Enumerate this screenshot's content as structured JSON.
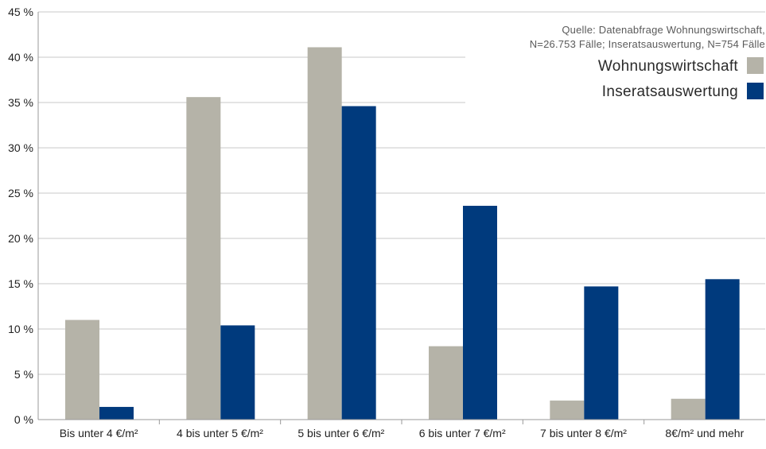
{
  "chart_data": {
    "type": "bar",
    "categories": [
      "Bis unter 4 €/m²",
      "4 bis unter 5 €/m²",
      "5 bis unter 6 €/m²",
      "6 bis unter 7 €/m²",
      "7 bis unter 8 €/m²",
      "8€/m² und mehr"
    ],
    "series": [
      {
        "name": "Wohnungswirtschaft",
        "color": "#b5b3a8",
        "values": [
          11.0,
          35.6,
          41.1,
          8.1,
          2.1,
          2.3
        ]
      },
      {
        "name": "Inseratsauswertung",
        "color": "#003a7d",
        "values": [
          1.4,
          10.4,
          34.6,
          23.6,
          14.7,
          15.5
        ]
      }
    ],
    "ylim": [
      0,
      45
    ],
    "yticks": [
      0,
      5,
      10,
      15,
      20,
      25,
      30,
      35,
      40,
      45
    ],
    "ytick_labels": [
      "0 %",
      "5 %",
      "10 %",
      "15 %",
      "20 %",
      "25 %",
      "30 %",
      "35 %",
      "40 %",
      "45 %"
    ],
    "grid": true,
    "legend_position": "top-right",
    "annotation": {
      "line1": "Quelle: Datenabfrage Wohnungswirtschaft,",
      "line2": "N=26.753 Fälle; Inseratsauswertung, N=754 Fälle"
    },
    "title": "",
    "xlabel": "",
    "ylabel": ""
  }
}
